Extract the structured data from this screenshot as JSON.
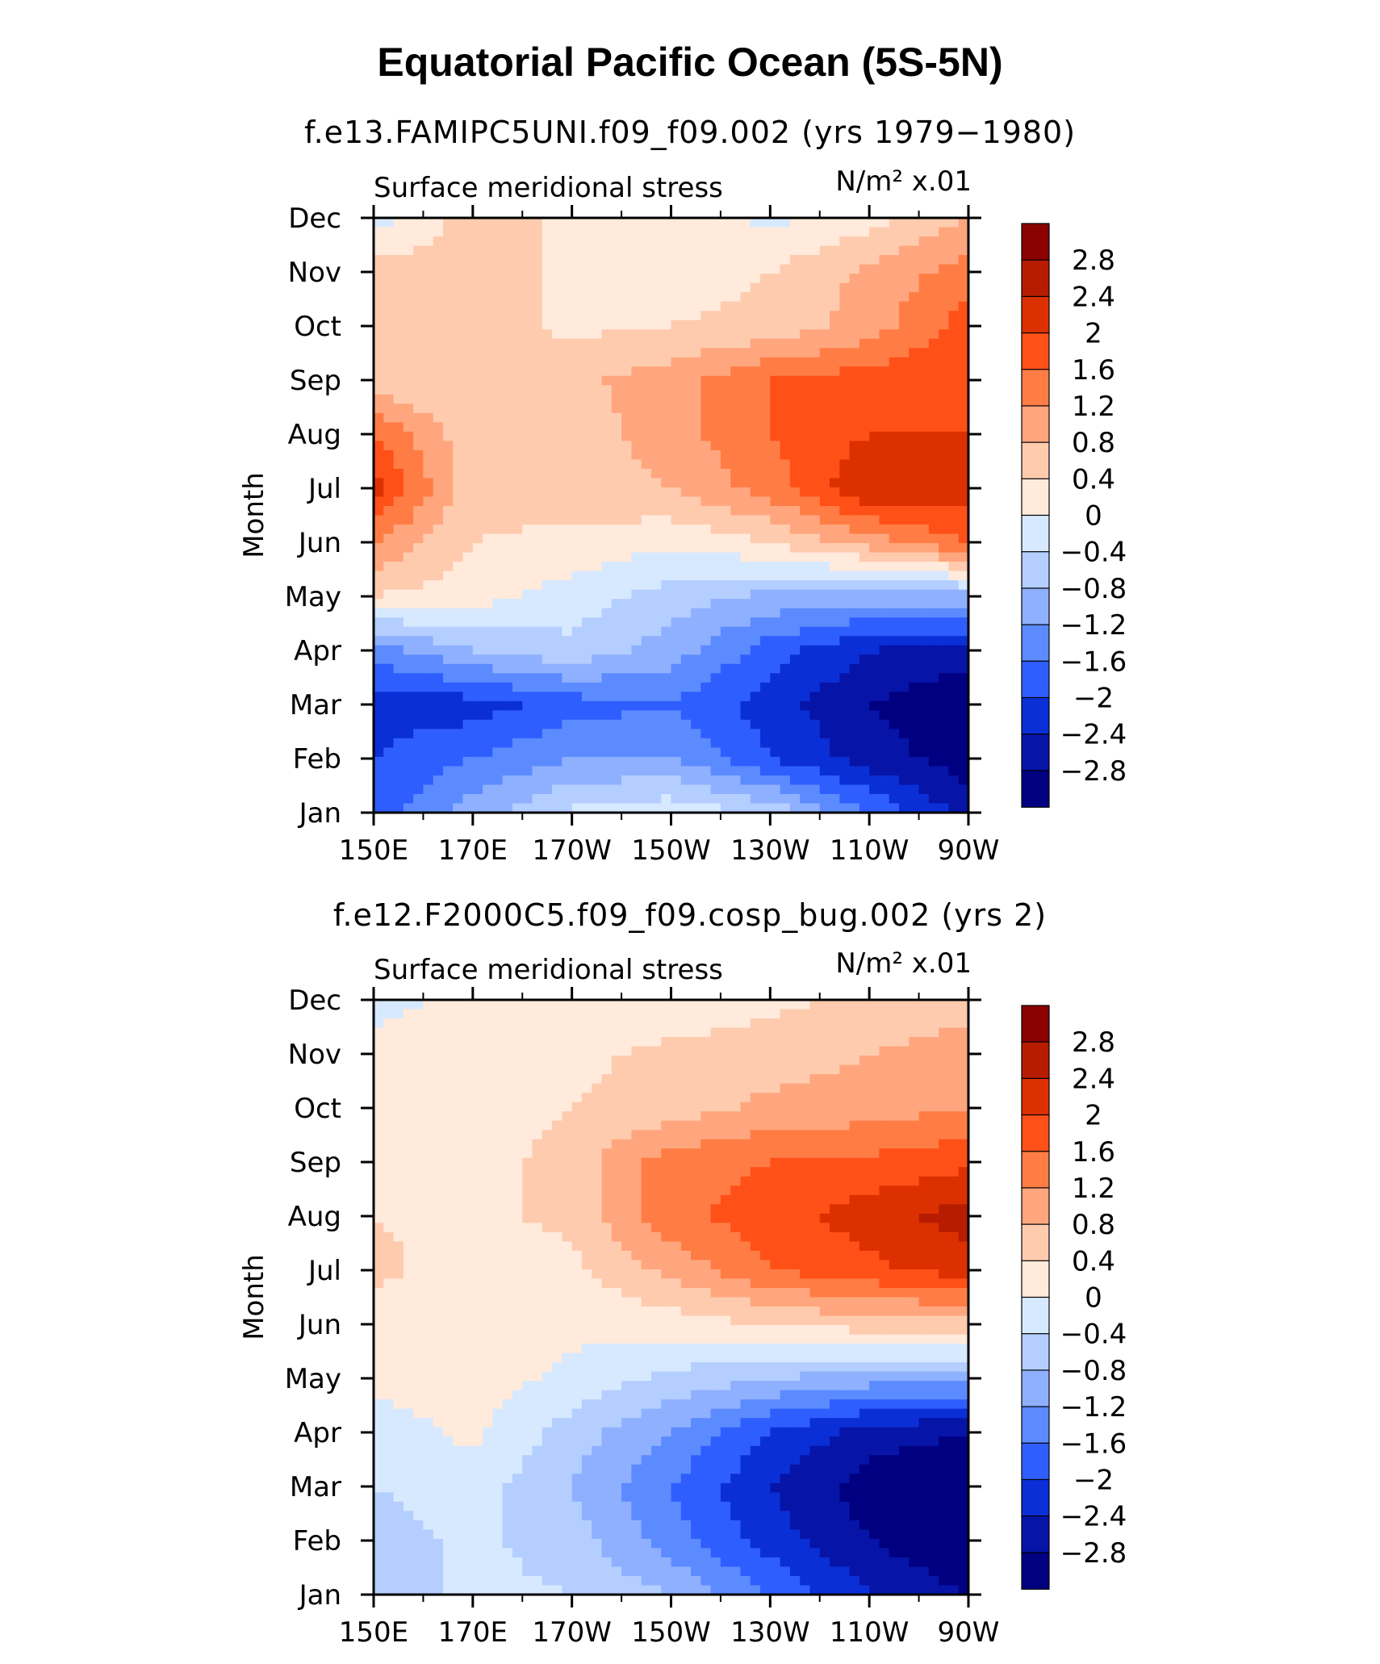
{
  "title": "Equatorial Pacific Ocean (5S-5N)",
  "colorbar": {
    "levels": [
      "2.8",
      "2.4",
      "2",
      "1.6",
      "1.2",
      "0.8",
      "0.4",
      "0",
      "−0.4",
      "−0.8",
      "−1.2",
      "−1.6",
      "−2",
      "−2.4",
      "−2.8"
    ],
    "colors": [
      "#8b0000",
      "#b71c00",
      "#dd3000",
      "#ff5018",
      "#ff7d45",
      "#ffa67e",
      "#ffcbae",
      "#ffeadc",
      "#d7e9ff",
      "#b4ceff",
      "#8fb0ff",
      "#5c8bff",
      "#2f5eff",
      "#0b2fd6",
      "#0614a8",
      "#000080"
    ]
  },
  "chart_data": [
    {
      "type": "heatmap",
      "title": "f.e13.FAMIPC5UNI.f09_f09.002 (yrs 1979−1980)",
      "variable": "Surface meridional stress",
      "units": "N/m² x.01",
      "xlabel": "",
      "ylabel": "Month",
      "x": [
        "150E",
        "170E",
        "170W",
        "150W",
        "130W",
        "110W",
        "90W"
      ],
      "y": [
        "Jan",
        "Feb",
        "Mar",
        "Apr",
        "May",
        "Jun",
        "Jul",
        "Aug",
        "Sep",
        "Oct",
        "Nov",
        "Dec"
      ],
      "values": [
        [
          -1.8,
          -1.0,
          -0.3,
          -0.1,
          -0.5,
          -1.6,
          -2.6
        ],
        [
          -2.0,
          -1.6,
          -1.2,
          -1.2,
          -2.0,
          -2.6,
          -3.0
        ],
        [
          -2.2,
          -2.2,
          -1.8,
          -1.6,
          -2.2,
          -2.8,
          -3.2
        ],
        [
          -1.4,
          -0.8,
          -0.5,
          -1.0,
          -1.8,
          -2.4,
          -2.6
        ],
        [
          0.4,
          0.2,
          -0.2,
          -0.6,
          -0.9,
          -1.0,
          -0.9
        ],
        [
          1.2,
          0.4,
          0.3,
          0.1,
          0.4,
          1.0,
          1.6
        ],
        [
          2.2,
          0.5,
          0.6,
          0.8,
          1.4,
          2.4,
          2.2
        ],
        [
          1.6,
          0.5,
          0.6,
          1.0,
          1.6,
          2.0,
          2.0
        ],
        [
          0.5,
          0.4,
          0.7,
          1.0,
          1.6,
          1.8,
          2.0
        ],
        [
          0.5,
          0.6,
          0.3,
          0.4,
          0.5,
          1.0,
          1.8
        ],
        [
          0.6,
          0.6,
          0.3,
          0.2,
          0.4,
          0.9,
          1.4
        ],
        [
          -0.2,
          0.6,
          0.3,
          0.2,
          -0.1,
          0.2,
          0.8
        ]
      ]
    },
    {
      "type": "heatmap",
      "title": "f.e12.F2000C5.f09_f09.cosp_bug.002 (yrs 2)",
      "variable": "Surface meridional stress",
      "units": "N/m² x.01",
      "xlabel": "",
      "ylabel": "Month",
      "x": [
        "150E",
        "170E",
        "170W",
        "150W",
        "130W",
        "110W",
        "90W"
      ],
      "y": [
        "Jan",
        "Feb",
        "Mar",
        "Apr",
        "May",
        "Jun",
        "Jul",
        "Aug",
        "Sep",
        "Oct",
        "Nov",
        "Dec"
      ],
      "values": [
        [
          -0.6,
          -0.3,
          -0.4,
          -0.8,
          -1.6,
          -2.4,
          -2.8
        ],
        [
          -0.6,
          -0.3,
          -0.6,
          -1.4,
          -2.2,
          -2.8,
          -3.2
        ],
        [
          -0.4,
          -0.2,
          -0.8,
          -1.6,
          -2.4,
          -3.0,
          -3.2
        ],
        [
          -0.2,
          0.1,
          -0.6,
          -1.2,
          -2.0,
          -2.6,
          -2.8
        ],
        [
          0.1,
          0.2,
          -0.1,
          -0.5,
          -0.8,
          -1.0,
          -1.0
        ],
        [
          0.2,
          0.1,
          0.1,
          0.2,
          0.4,
          0.6,
          0.6
        ],
        [
          0.5,
          0.2,
          0.3,
          0.9,
          1.6,
          1.9,
          2.2
        ],
        [
          0.4,
          0.3,
          0.5,
          1.5,
          1.8,
          2.2,
          2.6
        ],
        [
          0.3,
          0.2,
          0.6,
          1.4,
          1.6,
          1.7,
          1.9
        ],
        [
          0.1,
          0.1,
          0.4,
          0.6,
          0.9,
          1.0,
          1.2
        ],
        [
          0.1,
          0.1,
          0.3,
          0.5,
          0.6,
          0.8,
          1.0
        ],
        [
          -0.1,
          0.1,
          0.0,
          0.1,
          0.3,
          0.5,
          0.6
        ]
      ]
    }
  ]
}
